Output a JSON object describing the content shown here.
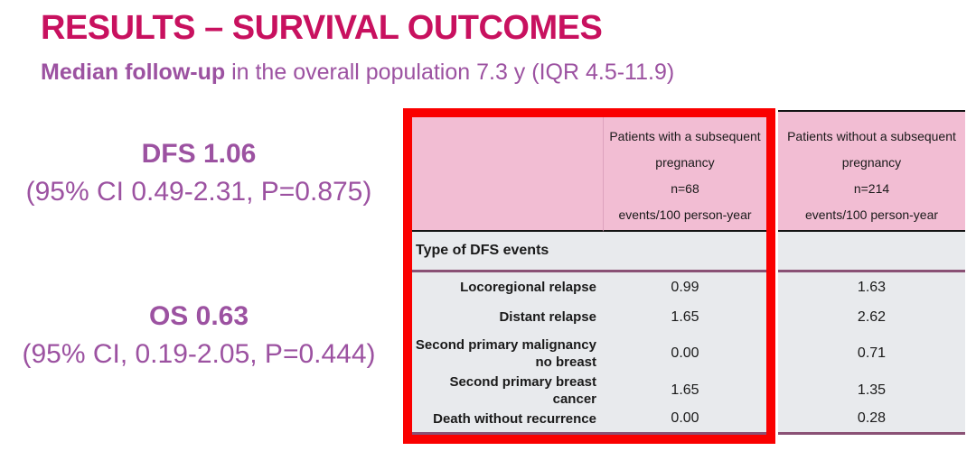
{
  "slide": {
    "title": "RESULTS – SURVIVAL OUTCOMES",
    "subtitle_bold": "Median follow-up",
    "subtitle_rest": " in the overall population 7.3 y (IQR 4.5-11.9)"
  },
  "stats": {
    "dfs": {
      "headline": "DFS 1.06",
      "detail": "(95% CI 0.49-2.31, P=0.875)"
    },
    "os": {
      "headline": "OS 0.63",
      "detail": "(95% CI, 0.19-2.05, P=0.444)"
    }
  },
  "table": {
    "columns": [
      {
        "label": ""
      },
      {
        "lines": [
          "Patients with a subsequent",
          "pregnancy",
          "n=68",
          "events/100 person-year"
        ]
      },
      {
        "lines": [
          "Patients without a subsequent",
          "pregnancy",
          "n=214",
          "events/100 person-year"
        ]
      }
    ],
    "section_header": "Type of DFS events",
    "rows": [
      {
        "label": "Locoregional relapse",
        "with_pregnancy": "0.99",
        "without_pregnancy": "1.63"
      },
      {
        "label": "Distant relapse",
        "with_pregnancy": "1.65",
        "without_pregnancy": "2.62"
      },
      {
        "label": "Second primary malignancy no breast",
        "with_pregnancy": "0.00",
        "without_pregnancy": "0.71"
      },
      {
        "label": "Second primary breast cancer",
        "with_pregnancy": "1.65",
        "without_pregnancy": "1.35"
      },
      {
        "label": "Death without recurrence",
        "with_pregnancy": "0.00",
        "without_pregnancy": "0.28"
      }
    ]
  },
  "highlight": {
    "color": "#FA0000",
    "meaning": "red box around subsequent-pregnancy columns"
  },
  "colors": {
    "title": "#C8115F",
    "purple_text": "#9C52A1",
    "header_pink": "#F2BDD3",
    "body_gray": "#E8EAED",
    "rule_mauve": "#8A5175"
  }
}
